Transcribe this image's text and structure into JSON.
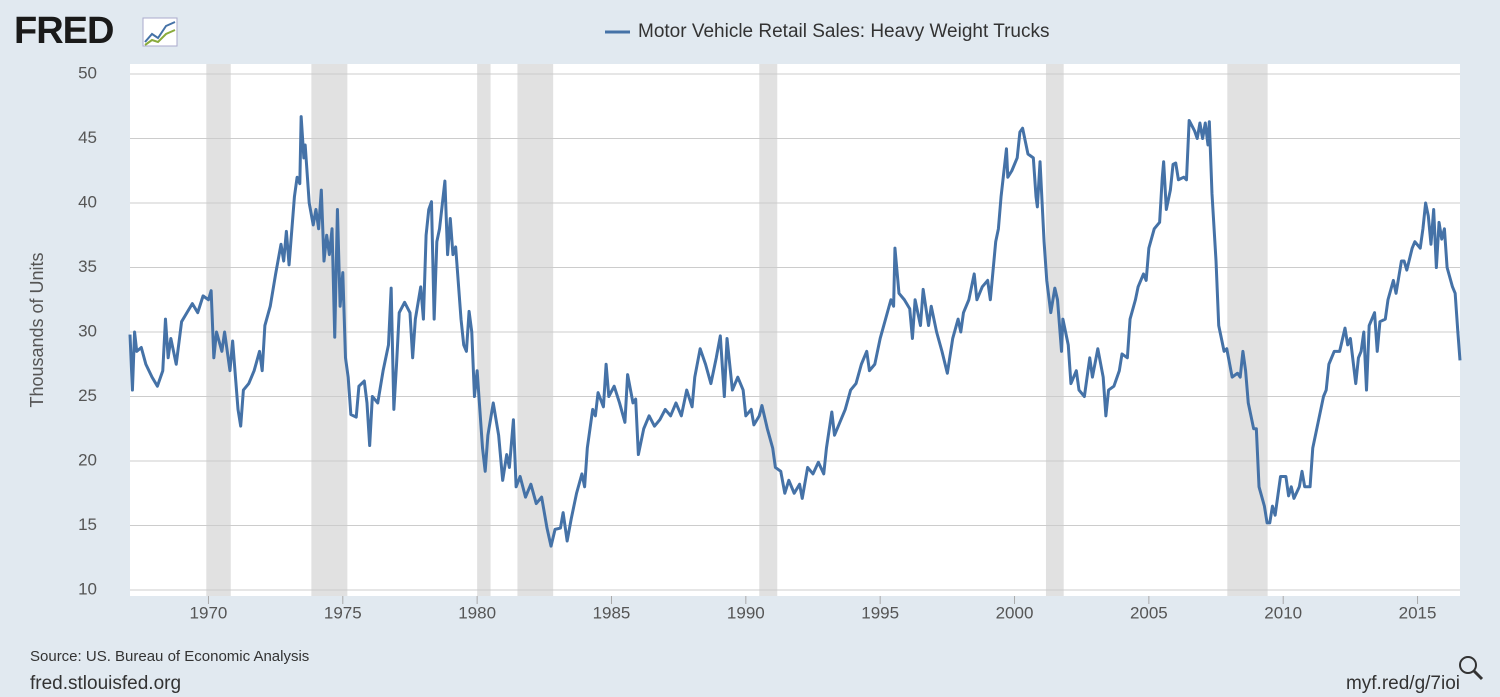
{
  "chart_data": {
    "type": "line",
    "logo": "FRED",
    "y_label": "Thousands of Units",
    "source": "Source: US. Bureau of Economic Analysis",
    "site": "fred.stlouisfed.org",
    "short_link": "myf.red/g/7ioi",
    "xlim": [
      1967.08,
      2016.58
    ],
    "xticks": [
      1970,
      1975,
      1980,
      1985,
      1990,
      1995,
      2000,
      2005,
      2010,
      2015
    ],
    "ylim": [
      10,
      50
    ],
    "yticks": [
      10,
      15,
      20,
      25,
      30,
      35,
      40,
      45,
      50
    ],
    "grid": true,
    "recessions": [
      [
        1969.92,
        1970.83
      ],
      [
        1973.83,
        1975.17
      ],
      [
        1980.0,
        1980.5
      ],
      [
        1981.5,
        1982.83
      ],
      [
        1990.5,
        1991.17
      ],
      [
        2001.17,
        2001.83
      ],
      [
        2007.92,
        2009.42
      ]
    ],
    "x": [
      1967.08,
      1967.17,
      1967.25,
      1967.33,
      1967.5,
      1967.67,
      1967.9,
      1968.1,
      1968.3,
      1968.4,
      1968.5,
      1968.6,
      1968.8,
      1969.0,
      1969.2,
      1969.4,
      1969.6,
      1969.8,
      1970.0,
      1970.1,
      1970.2,
      1970.3,
      1970.5,
      1970.6,
      1970.8,
      1970.9,
      1971.1,
      1971.2,
      1971.3,
      1971.5,
      1971.7,
      1971.9,
      1972.0,
      1972.1,
      1972.3,
      1972.5,
      1972.7,
      1972.8,
      1972.9,
      1973.0,
      1973.2,
      1973.3,
      1973.4,
      1973.45,
      1973.55,
      1973.6,
      1973.75,
      1973.9,
      1974.0,
      1974.1,
      1974.2,
      1974.3,
      1974.4,
      1974.5,
      1974.6,
      1974.7,
      1974.8,
      1974.9,
      1975.0,
      1975.1,
      1975.2,
      1975.3,
      1975.5,
      1975.6,
      1975.8,
      1975.9,
      1976.0,
      1976.1,
      1976.3,
      1976.5,
      1976.7,
      1976.8,
      1976.9,
      1977.0,
      1977.1,
      1977.3,
      1977.5,
      1977.6,
      1977.7,
      1977.9,
      1978.0,
      1978.1,
      1978.2,
      1978.3,
      1978.4,
      1978.5,
      1978.6,
      1978.8,
      1978.9,
      1979.0,
      1979.1,
      1979.2,
      1979.4,
      1979.5,
      1979.6,
      1979.7,
      1979.8,
      1979.9,
      1980.0,
      1980.2,
      1980.3,
      1980.4,
      1980.6,
      1980.8,
      1980.95,
      1981.1,
      1981.2,
      1981.35,
      1981.45,
      1981.6,
      1981.8,
      1982.0,
      1982.2,
      1982.4,
      1982.6,
      1982.75,
      1982.9,
      1983.1,
      1983.2,
      1983.35,
      1983.5,
      1983.7,
      1983.9,
      1984.0,
      1984.1,
      1984.3,
      1984.4,
      1984.5,
      1984.7,
      1984.8,
      1984.9,
      1985.1,
      1985.3,
      1985.5,
      1985.6,
      1985.8,
      1985.9,
      1986.0,
      1986.2,
      1986.4,
      1986.6,
      1986.8,
      1987.0,
      1987.2,
      1987.4,
      1987.6,
      1987.8,
      1988.0,
      1988.1,
      1988.3,
      1988.5,
      1988.7,
      1988.9,
      1989.05,
      1989.2,
      1989.3,
      1989.5,
      1989.7,
      1989.9,
      1990.0,
      1990.2,
      1990.3,
      1990.5,
      1990.6,
      1990.8,
      1991.0,
      1991.1,
      1991.3,
      1991.45,
      1991.6,
      1991.8,
      1992.0,
      1992.1,
      1992.3,
      1992.5,
      1992.7,
      1992.9,
      1993.0,
      1993.2,
      1993.3,
      1993.5,
      1993.7,
      1993.9,
      1994.1,
      1994.3,
      1994.5,
      1994.6,
      1994.8,
      1995.0,
      1995.2,
      1995.4,
      1995.5,
      1995.55,
      1995.7,
      1995.9,
      1996.1,
      1996.2,
      1996.3,
      1996.5,
      1996.6,
      1996.8,
      1996.9,
      1997.1,
      1997.3,
      1997.5,
      1997.7,
      1997.9,
      1998.0,
      1998.1,
      1998.3,
      1998.5,
      1998.6,
      1998.8,
      1999.0,
      1999.1,
      1999.3,
      1999.4,
      1999.5,
      1999.7,
      1999.75,
      1999.9,
      2000.1,
      2000.2,
      2000.3,
      2000.5,
      2000.7,
      2000.8,
      2000.85,
      2000.95,
      2001.1,
      2001.2,
      2001.35,
      2001.5,
      2001.6,
      2001.75,
      2001.8,
      2002.0,
      2002.1,
      2002.3,
      2002.4,
      2002.6,
      2002.8,
      2002.9,
      2003.1,
      2003.3,
      2003.4,
      2003.5,
      2003.7,
      2003.9,
      2004.0,
      2004.2,
      2004.3,
      2004.5,
      2004.6,
      2004.8,
      2004.9,
      2005.0,
      2005.2,
      2005.4,
      2005.5,
      2005.55,
      2005.65,
      2005.8,
      2005.9,
      2006.0,
      2006.1,
      2006.3,
      2006.4,
      2006.5,
      2006.7,
      2006.8,
      2006.9,
      2007.0,
      2007.1,
      2007.2,
      2007.25,
      2007.35,
      2007.5,
      2007.6,
      2007.8,
      2007.9,
      2008.1,
      2008.3,
      2008.4,
      2008.5,
      2008.6,
      2008.7,
      2008.9,
      2009.0,
      2009.1,
      2009.3,
      2009.4,
      2009.5,
      2009.6,
      2009.7,
      2009.9,
      2010.1,
      2010.2,
      2010.3,
      2010.4,
      2010.6,
      2010.7,
      2010.8,
      2011.0,
      2011.1,
      2011.3,
      2011.5,
      2011.6,
      2011.7,
      2011.9,
      2012.1,
      2012.3,
      2012.4,
      2012.5,
      2012.7,
      2012.8,
      2012.9,
      2013.0,
      2013.1,
      2013.2,
      2013.4,
      2013.5,
      2013.6,
      2013.8,
      2013.9,
      2014.1,
      2014.2,
      2014.4,
      2014.5,
      2014.6,
      2014.8,
      2014.9,
      2015.1,
      2015.2,
      2015.3,
      2015.4,
      2015.5,
      2015.6,
      2015.7,
      2015.8,
      2015.9,
      2016.0,
      2016.1,
      2016.3,
      2016.4,
      2016.5,
      2016.58
    ],
    "series": [
      {
        "name": "Motor Vehicle Retail Sales: Heavy Weight Trucks",
        "color": "#4572a7",
        "values": [
          29.8,
          25.5,
          30,
          28.5,
          28.8,
          27.5,
          26.5,
          25.8,
          27,
          31,
          28,
          29.5,
          27.5,
          30.8,
          31.5,
          32.2,
          31.5,
          32.8,
          32.5,
          33.2,
          28,
          30,
          28.5,
          30,
          27,
          29.3,
          24,
          22.7,
          25.5,
          26,
          27,
          28.5,
          27,
          30.5,
          32,
          34.5,
          36.8,
          35.5,
          37.8,
          35.2,
          40.5,
          42,
          41.5,
          46.7,
          43.5,
          44.5,
          40,
          38.3,
          39.5,
          38,
          41,
          35.5,
          37.5,
          36,
          38,
          29.6,
          39.5,
          32,
          34.6,
          28,
          26.5,
          23.6,
          23.4,
          25.8,
          26.2,
          24.5,
          21.2,
          25,
          24.5,
          27,
          29,
          33.4,
          24,
          27.5,
          31.5,
          32.3,
          31.5,
          28,
          31,
          33.5,
          31,
          37.5,
          39.5,
          40.1,
          31,
          37,
          38,
          41.7,
          36,
          38.8,
          36,
          36.6,
          31,
          29,
          28.5,
          31.6,
          30,
          25,
          27,
          21,
          19.2,
          22,
          24.5,
          22,
          18.5,
          20.5,
          19.5,
          23.2,
          18,
          18.8,
          17.2,
          18.2,
          16.7,
          17.2,
          14.8,
          13.4,
          14.7,
          14.8,
          16,
          13.8,
          15.5,
          17.5,
          19,
          18,
          21,
          24,
          23.5,
          25.3,
          24.2,
          27.5,
          25,
          25.8,
          24.5,
          23,
          26.7,
          24.5,
          24.8,
          20.5,
          22.5,
          23.5,
          22.7,
          23.2,
          24,
          23.5,
          24.5,
          23.5,
          25.5,
          24.2,
          26.5,
          28.7,
          27.5,
          26,
          28,
          29.7,
          25,
          29.5,
          25.5,
          26.5,
          25.5,
          23.5,
          24,
          22.8,
          23.5,
          24.3,
          22.5,
          21,
          19.5,
          19.2,
          17.5,
          18.5,
          17.5,
          18.2,
          17.1,
          19.5,
          19,
          19.9,
          19,
          21,
          23.8,
          22,
          23,
          24,
          25.5,
          26,
          27.5,
          28.5,
          27,
          27.5,
          29.5,
          31,
          32.5,
          32,
          36.5,
          33,
          32.5,
          31.8,
          29.5,
          32.5,
          30.5,
          33.3,
          30.5,
          32,
          30,
          28.5,
          26.8,
          29.5,
          31,
          30,
          31.5,
          32.5,
          34.5,
          32.5,
          33.5,
          34,
          32.5,
          37,
          38,
          40.5,
          44.2,
          42,
          42.5,
          43.5,
          45.5,
          45.8,
          43.8,
          43.5,
          40.5,
          39.7,
          43.2,
          37,
          34,
          31.5,
          33.4,
          32.5,
          28.5,
          31,
          29,
          26,
          27,
          25.5,
          25,
          28,
          26.5,
          28.7,
          26.5,
          23.5,
          25.5,
          25.8,
          27,
          28.3,
          28,
          31,
          32.5,
          33.5,
          34.5,
          34,
          36.5,
          38,
          38.5,
          42,
          43.2,
          39.5,
          41,
          43,
          43.1,
          41.8,
          42,
          41.8,
          46.4,
          45.6,
          45,
          46.2,
          45,
          46.2,
          44.5,
          46.3,
          40.7,
          35.5,
          30.5,
          28.5,
          28.7,
          26.5,
          26.8,
          26.5,
          28.5,
          27,
          24.5,
          22.5,
          22.5,
          18,
          16.5,
          15.2,
          15.2,
          16.5,
          15.8,
          18.8,
          18.8,
          17.3,
          18,
          17.1,
          18,
          19.2,
          18,
          18,
          21,
          23,
          25,
          25.5,
          27.5,
          28.5,
          28.5,
          30.3,
          29,
          29.5,
          26,
          28,
          28.5,
          30,
          25.5,
          30.5,
          31.5,
          28.5,
          30.8,
          31,
          32.5,
          34,
          33,
          35.5,
          35.5,
          34.8,
          36.5,
          37,
          36.5,
          38,
          40,
          39,
          36.8,
          39.5,
          35,
          38.5,
          37.2,
          38,
          35,
          33.5,
          33,
          30,
          27.8
        ]
      }
    ]
  }
}
